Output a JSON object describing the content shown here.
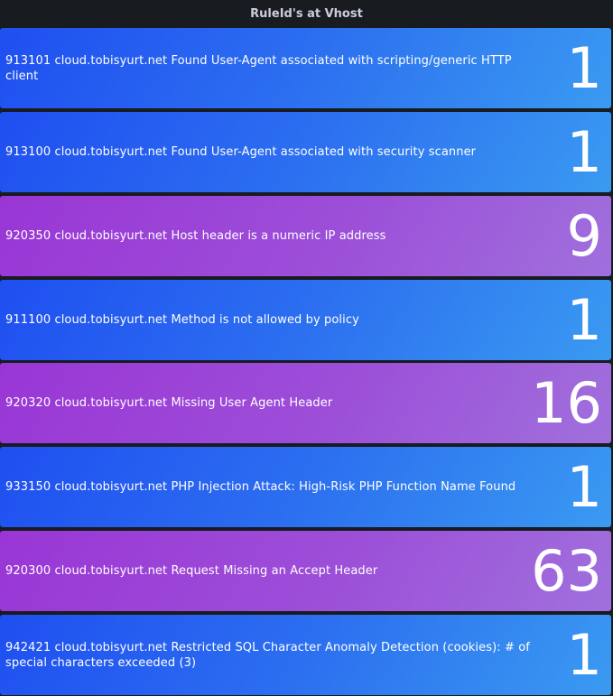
{
  "panel": {
    "title": "RuleId's at Vhost"
  },
  "colors": {
    "blue": "#2c6ff0",
    "purple": "#9c4fd8",
    "background": "#181b1f"
  },
  "rows": [
    {
      "label": "913101 cloud.tobisyurt.net Found User-Agent associated with scripting/generic HTTP client",
      "value": "1",
      "color": "blue"
    },
    {
      "label": "913100 cloud.tobisyurt.net Found User-Agent associated with security scanner",
      "value": "1",
      "color": "blue"
    },
    {
      "label": "920350 cloud.tobisyurt.net Host header is a numeric IP address",
      "value": "9",
      "color": "purple"
    },
    {
      "label": "911100 cloud.tobisyurt.net Method is not allowed by policy",
      "value": "1",
      "color": "blue"
    },
    {
      "label": "920320 cloud.tobisyurt.net Missing User Agent Header",
      "value": "16",
      "color": "purple"
    },
    {
      "label": "933150 cloud.tobisyurt.net PHP Injection Attack: High-Risk PHP Function Name Found",
      "value": "1",
      "color": "blue"
    },
    {
      "label": "920300 cloud.tobisyurt.net Request Missing an Accept Header",
      "value": "63",
      "color": "purple"
    },
    {
      "label": "942421 cloud.tobisyurt.net Restricted SQL Character Anomaly Detection (cookies): # of special characters exceeded (3)",
      "value": "1",
      "color": "blue"
    }
  ]
}
